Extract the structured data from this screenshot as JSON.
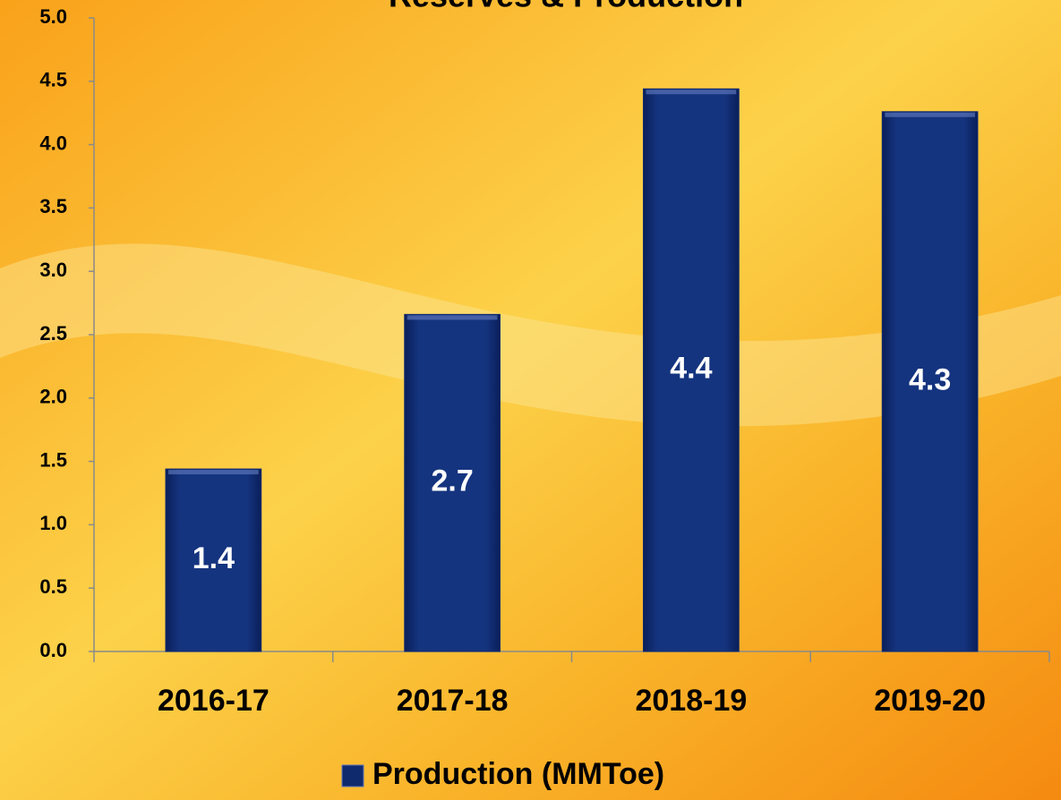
{
  "chart_data": {
    "type": "bar",
    "title": "Reserves & Production",
    "categories": [
      "2016-17",
      "2017-18",
      "2018-19",
      "2019-20"
    ],
    "series": [
      {
        "name": "Production (MMToe)",
        "color": "#102a6e",
        "values": [
          1.44,
          2.66,
          4.44,
          4.26
        ],
        "value_labels": [
          "1.4",
          "2.7",
          "4.4",
          "4.3"
        ]
      }
    ],
    "ylim": [
      0,
      5
    ],
    "yticks": [
      {
        "value": 0,
        "label": "0.0"
      },
      {
        "value": 0.5,
        "label": "0.5"
      },
      {
        "value": 1,
        "label": "1.0"
      },
      {
        "value": 1.5,
        "label": "1.5"
      },
      {
        "value": 2,
        "label": "2.0"
      },
      {
        "value": 2.5,
        "label": "2.5"
      },
      {
        "value": 3,
        "label": "3.0"
      },
      {
        "value": 3.5,
        "label": "3.5"
      },
      {
        "value": 4,
        "label": "4.0"
      },
      {
        "value": 4.5,
        "label": "4.5"
      },
      {
        "value": 5,
        "label": "5.0"
      }
    ],
    "grid": false,
    "legend": "bottom"
  }
}
